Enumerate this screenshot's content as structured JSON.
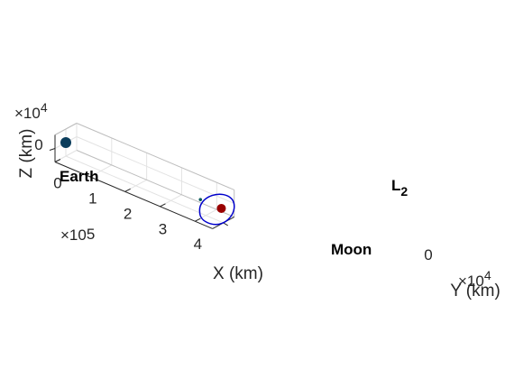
{
  "chart_data": {
    "type": "scatter",
    "view": "3d",
    "xlabel": "X (km)",
    "ylabel": "Y (km)",
    "zlabel": "Z (km)",
    "x_ticks": [
      "0",
      "1",
      "2",
      "3",
      "4"
    ],
    "y_ticks": [
      "0"
    ],
    "z_ticks": [
      "0"
    ],
    "x_exponent": {
      "base": "×10",
      "power": "5"
    },
    "y_exponent": {
      "base": "×10",
      "power": "4"
    },
    "z_exponent": {
      "base": "×10",
      "power": "4"
    },
    "xlim": [
      0,
      450000
    ],
    "ylim": [
      -10000,
      10000
    ],
    "zlim": [
      -10000,
      10000
    ],
    "grid": true,
    "points": [
      {
        "name": "Earth",
        "x": 0,
        "y": 0,
        "z": 0,
        "color": "#0b3d5c",
        "size": "large"
      },
      {
        "name": "Moon",
        "x": 384400,
        "y": 0,
        "z": 0,
        "color": "#0b5c5c",
        "size": "small"
      },
      {
        "name": "L2",
        "x": 444200,
        "y": 0,
        "z": 0,
        "color": "#990000",
        "size": "medium"
      }
    ],
    "orbit": {
      "color": "#0000cc",
      "center": "L2"
    },
    "annotations": [
      {
        "text": "Earth"
      },
      {
        "text": "Moon"
      },
      {
        "text": "L",
        "subscript": "2"
      }
    ]
  }
}
